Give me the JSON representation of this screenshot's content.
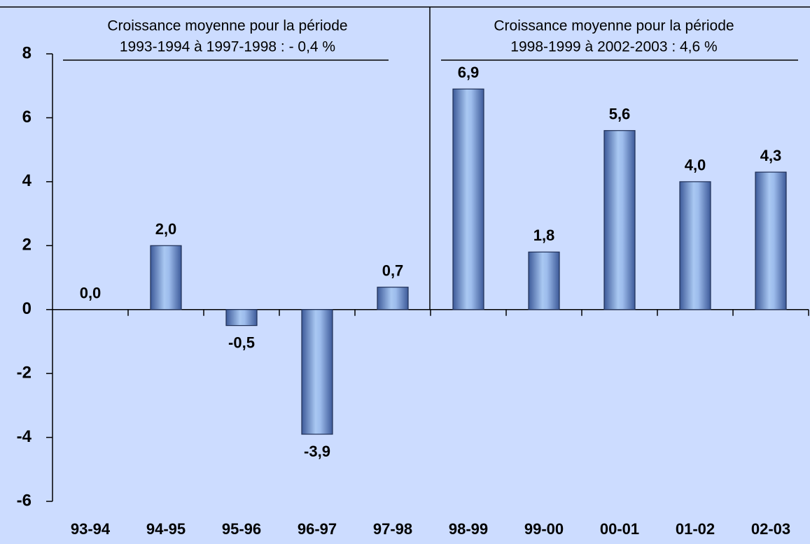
{
  "chart_data": {
    "type": "bar",
    "categories": [
      "93-94",
      "94-95",
      "95-96",
      "96-97",
      "97-98",
      "98-99",
      "99-00",
      "00-01",
      "01-02",
      "02-03"
    ],
    "values": [
      0.0,
      2.0,
      -0.5,
      -3.9,
      0.7,
      6.9,
      1.8,
      5.6,
      4.0,
      4.3
    ],
    "value_labels": [
      "0,0",
      "2,0",
      "-0,5",
      "-3,9",
      "0,7",
      "6,9",
      "1,8",
      "5,6",
      "4,0",
      "4,3"
    ],
    "color": "#8fb0e6",
    "ylim": [
      -6,
      8
    ],
    "yticks": [
      -6,
      -4,
      -2,
      0,
      2,
      4,
      6,
      8
    ],
    "annotations": [
      [
        "Croissance moyenne pour la période",
        "1993-1994 à 1997-1998 : - 0,4 %"
      ],
      [
        "Croissance moyenne pour la période",
        "1998-1999 à 2002-2003 : 4,6 %"
      ]
    ]
  }
}
